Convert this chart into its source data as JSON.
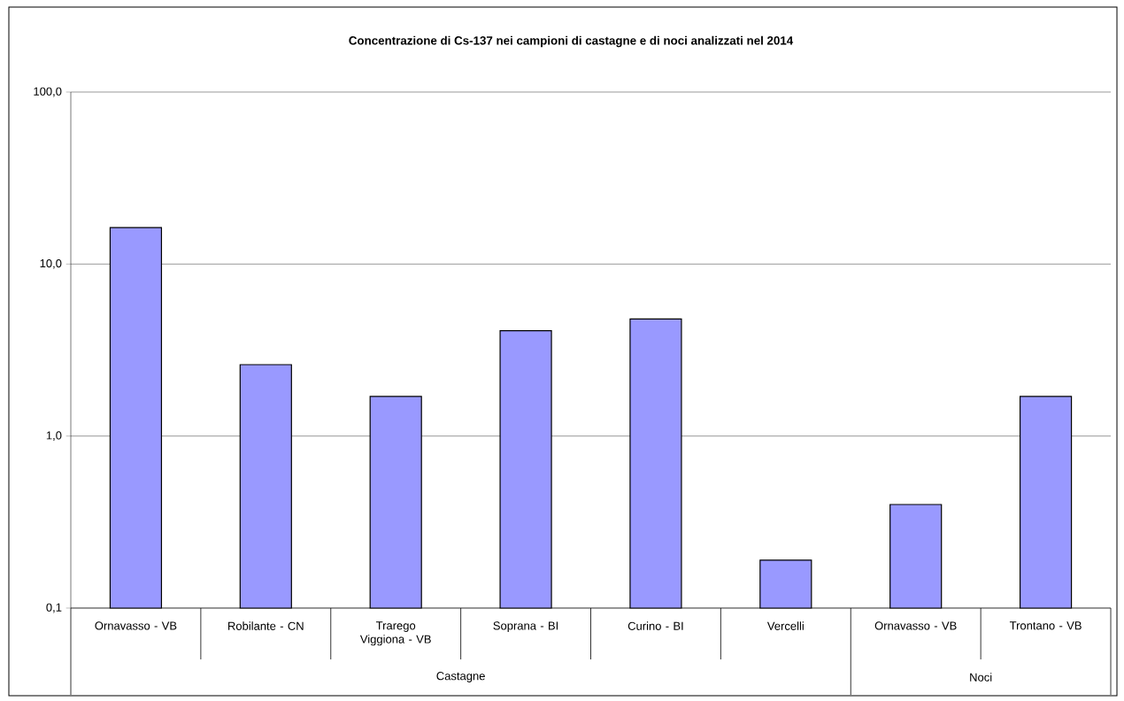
{
  "chart_data": {
    "type": "bar",
    "title": "Concentrazione di Cs-137 nei campioni di castagne e di noci analizzati nel 2014",
    "categories": [
      "Ornavasso - VB",
      "Robilante - CN",
      "Trarego Viggiona - VB",
      "Soprana - BI",
      "Curino - BI",
      "Vercelli",
      "Ornavasso - VB",
      "Trontano - VB"
    ],
    "values": [
      16.3,
      2.6,
      1.7,
      4.1,
      4.8,
      0.19,
      0.4,
      1.7
    ],
    "color": "#9999ff",
    "log": "y",
    "ylim": [
      0.1,
      100
    ],
    "yticks": [
      {
        "value": 0.1,
        "label": "0,1"
      },
      {
        "value": 1,
        "label": "1,0"
      },
      {
        "value": 10,
        "label": "10,0"
      },
      {
        "value": 100,
        "label": "100,0"
      }
    ],
    "grid": "y",
    "annotations": [
      "Castagne",
      "Noci"
    ]
  }
}
